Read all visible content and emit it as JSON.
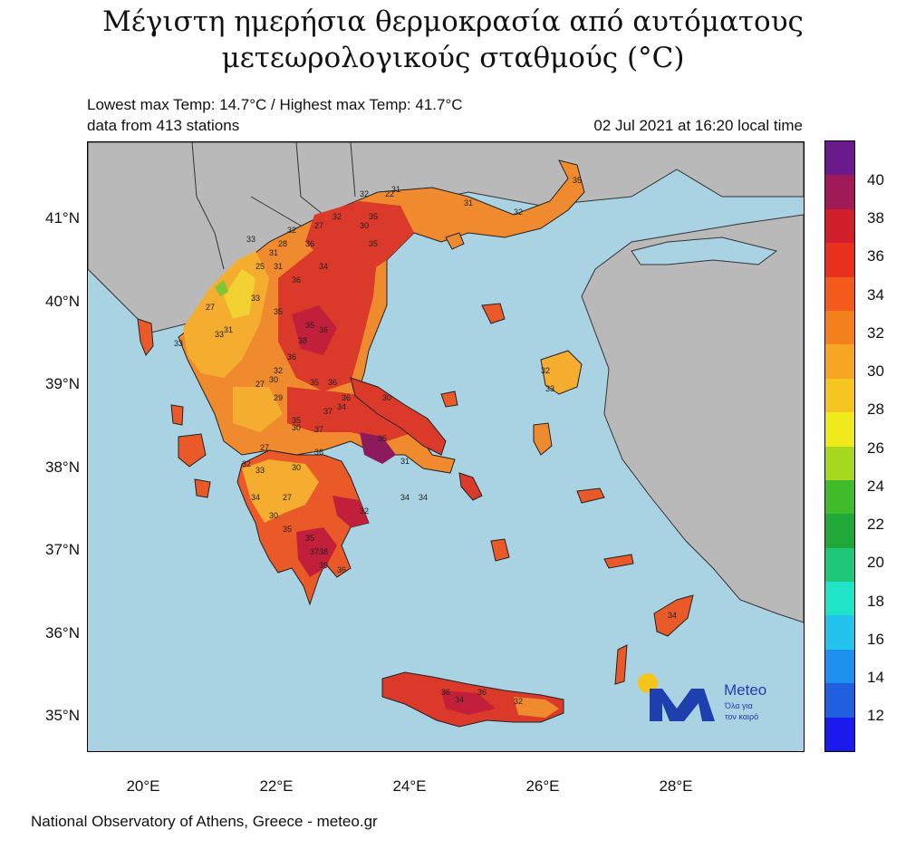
{
  "header": {
    "title_line1": "Μέγιστη ημερήσια θερμοκρασία από αυτόματους",
    "title_line2": "μετεωρολογικούς σταθμούς (°C)",
    "extremes": "Lowest max Temp: 14.7°C / Highest max Temp: 41.7°C",
    "stations": "data from 413 stations",
    "timestamp": "02 Jul 2021 at 16:20 local time"
  },
  "axes": {
    "lat_labels": [
      "41°N",
      "40°N",
      "39°N",
      "38°N",
      "37°N",
      "36°N",
      "35°N"
    ],
    "lon_labels": [
      "20°E",
      "22°E",
      "24°E",
      "26°E",
      "28°E"
    ]
  },
  "colorbar": {
    "labels": [
      "40",
      "38",
      "36",
      "34",
      "32",
      "30",
      "28",
      "26",
      "24",
      "22",
      "20",
      "18",
      "16",
      "14",
      "12"
    ],
    "colors": [
      "#1a1aee",
      "#1f5fe0",
      "#1e90f0",
      "#22c4ee",
      "#20e4c8",
      "#1fc77a",
      "#20a838",
      "#40bb2a",
      "#a8d81e",
      "#f0ea1c",
      "#f6c520",
      "#f6a622",
      "#f4801c",
      "#f45a1c",
      "#e8301c",
      "#d01e2a",
      "#a01a58",
      "#6a1a8a"
    ]
  },
  "map": {
    "colors": {
      "sea": "#a9d2e3",
      "land": "#b9b9b9",
      "t28": "#f2d233",
      "t30": "#f4ad2f",
      "t32": "#f08a2e",
      "t34": "#ea5a29",
      "t36": "#db3a2a",
      "t38": "#c21f3b",
      "t40": "#8c1a5c",
      "green": "#7fc534"
    },
    "station_labels": [
      {
        "t": "32"
      },
      {
        "t": "31"
      },
      {
        "t": "27"
      },
      {
        "t": "32"
      },
      {
        "t": "35"
      },
      {
        "t": "32"
      },
      {
        "t": "30"
      },
      {
        "t": "35"
      },
      {
        "t": "33"
      },
      {
        "t": "28"
      },
      {
        "t": "31"
      },
      {
        "t": "25"
      },
      {
        "t": "31"
      },
      {
        "t": "36"
      },
      {
        "t": "34"
      },
      {
        "t": "36"
      },
      {
        "t": "33"
      },
      {
        "t": "27"
      },
      {
        "t": "31"
      },
      {
        "t": "35"
      },
      {
        "t": "33"
      },
      {
        "t": "33"
      },
      {
        "t": "35"
      },
      {
        "t": "36"
      },
      {
        "t": "38"
      },
      {
        "t": "36"
      },
      {
        "t": "32"
      },
      {
        "t": "30"
      },
      {
        "t": "27"
      },
      {
        "t": "35"
      },
      {
        "t": "36"
      },
      {
        "t": "36"
      },
      {
        "t": "29"
      },
      {
        "t": "35"
      },
      {
        "t": "37"
      },
      {
        "t": "34"
      },
      {
        "t": "30"
      },
      {
        "t": "37"
      },
      {
        "t": "27"
      },
      {
        "t": "36"
      },
      {
        "t": "32"
      },
      {
        "t": "33"
      },
      {
        "t": "30"
      },
      {
        "t": "34"
      },
      {
        "t": "27"
      },
      {
        "t": "30"
      },
      {
        "t": "35"
      },
      {
        "t": "35"
      },
      {
        "t": "37"
      },
      {
        "t": "38"
      },
      {
        "t": "39"
      },
      {
        "t": "36"
      },
      {
        "t": "32"
      },
      {
        "t": "35"
      },
      {
        "t": "31"
      },
      {
        "t": "34"
      },
      {
        "t": "34"
      },
      {
        "t": "36"
      },
      {
        "t": "34"
      },
      {
        "t": "36"
      },
      {
        "t": "32"
      },
      {
        "t": "30"
      },
      {
        "t": "32"
      },
      {
        "t": "33"
      },
      {
        "t": "34"
      },
      {
        "t": "32"
      },
      {
        "t": "31"
      },
      {
        "t": "22"
      },
      {
        "t": "35"
      }
    ]
  },
  "logo": {
    "name": "Meteo",
    "tagline1": "Όλα για",
    "tagline2": "τον καιρό",
    "sun_color": "#f6c51c",
    "mark_color": "#1e3fae"
  },
  "footer": "National Observatory of Athens, Greece - meteo.gr"
}
